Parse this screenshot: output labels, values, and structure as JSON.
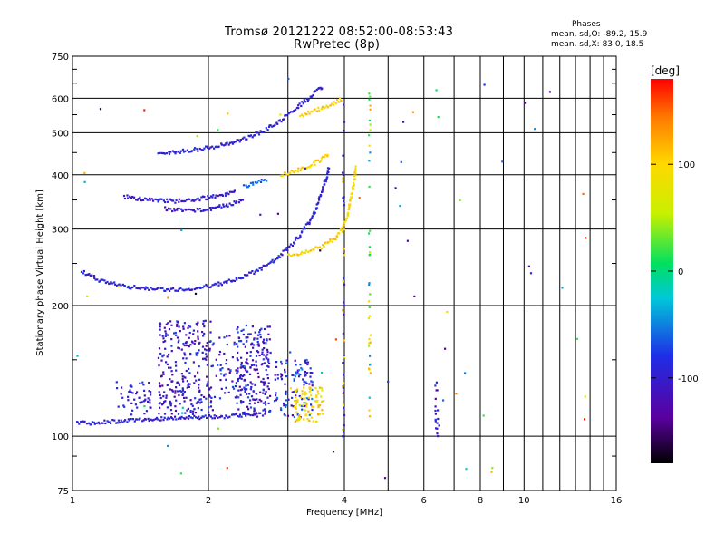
{
  "header": {
    "title": "Tromsø 20121222 08:52:00-08:53:43",
    "subtitle": "RwPretec (8p)"
  },
  "phases_box": {
    "heading": "Phases",
    "line_o": "mean, sd,O: -89.2, 15.9",
    "line_x": "mean, sd,X: 83.0, 18.5"
  },
  "colorbar": {
    "label": "[deg]",
    "ticks": [
      "100",
      "0",
      "-100"
    ],
    "tick_values": [
      100,
      0,
      -100
    ],
    "range": [
      -180,
      180
    ]
  },
  "chart_data": {
    "type": "scatter",
    "xlabel": "Frequency [MHz]",
    "ylabel": "Stationary phase Virtual Height [km]",
    "xscale": "log",
    "yscale": "log",
    "xlim": [
      1,
      16
    ],
    "ylim": [
      75,
      750
    ],
    "xticks": [
      1,
      2,
      4,
      6,
      8,
      10,
      16
    ],
    "xtick_labels": [
      "1",
      "2",
      "4",
      "6",
      "8",
      "10",
      "16"
    ],
    "yticks": [
      75,
      100,
      200,
      300,
      400,
      500,
      600,
      750
    ],
    "ytick_labels": [
      "75",
      "100",
      "200",
      "300",
      "400",
      "500",
      "600",
      "750"
    ],
    "grid": true,
    "colorscale": "phase in degrees, -180 (black) to 180 (red)",
    "traces": [
      {
        "desc": "E-layer O-trace",
        "f": [
          1.02,
          1.1,
          1.2,
          1.35,
          1.5,
          1.7,
          1.9,
          2.1,
          2.3,
          2.5,
          2.65
        ],
        "h": [
          108,
          107,
          108,
          109,
          109.5,
          110,
          110.5,
          111,
          111.5,
          112,
          112
        ],
        "phase": -95
      },
      {
        "desc": "F1/F2 O-trace",
        "f": [
          1.05,
          1.15,
          1.3,
          1.5,
          1.7,
          1.9,
          2.1,
          2.3,
          2.5,
          2.7,
          2.9,
          3.1,
          3.3,
          3.45,
          3.55,
          3.65,
          3.7
        ],
        "h": [
          240,
          228,
          222,
          218,
          218,
          220,
          224,
          230,
          238,
          248,
          262,
          280,
          305,
          330,
          360,
          395,
          420
        ],
        "phase": -95
      },
      {
        "desc": "F-layer X-trace",
        "f": [
          3.0,
          3.2,
          3.4,
          3.6,
          3.8,
          3.95,
          4.05,
          4.15,
          4.25
        ],
        "h": [
          262,
          264,
          268,
          275,
          285,
          300,
          320,
          360,
          420
        ],
        "phase": 100
      },
      {
        "desc": "Second-hop O-trace",
        "f": [
          1.55,
          1.7,
          1.9,
          2.1,
          2.3,
          2.5,
          2.7,
          2.9,
          3.1,
          3.3,
          3.45,
          3.6
        ],
        "h": [
          448,
          452,
          458,
          466,
          478,
          492,
          510,
          535,
          565,
          595,
          620,
          640
        ],
        "phase": -95
      },
      {
        "desc": "Second-hop X-trace",
        "f": [
          3.2,
          3.4,
          3.6,
          3.8,
          3.95
        ],
        "h": [
          548,
          560,
          572,
          585,
          600
        ],
        "phase": 100
      },
      {
        "desc": "Multi-hop O-trace A",
        "f": [
          1.3,
          1.5,
          1.7,
          1.9,
          2.1,
          2.3
        ],
        "h": [
          356,
          350,
          348,
          352,
          358,
          366
        ],
        "phase": -100
      },
      {
        "desc": "Multi-hop O-trace B",
        "f": [
          1.6,
          1.8,
          2.0,
          2.2,
          2.4
        ],
        "h": [
          334,
          330,
          334,
          340,
          350
        ],
        "phase": -100
      },
      {
        "desc": "Multi-hop X-trace",
        "f": [
          2.9,
          3.1,
          3.3,
          3.5,
          3.7
        ],
        "h": [
          400,
          408,
          418,
          430,
          448
        ],
        "phase": 100
      },
      {
        "desc": "Second-hop O-segment",
        "f": [
          2.4,
          2.55,
          2.7
        ],
        "h": [
          375,
          385,
          392
        ],
        "phase": -60
      }
    ]
  }
}
